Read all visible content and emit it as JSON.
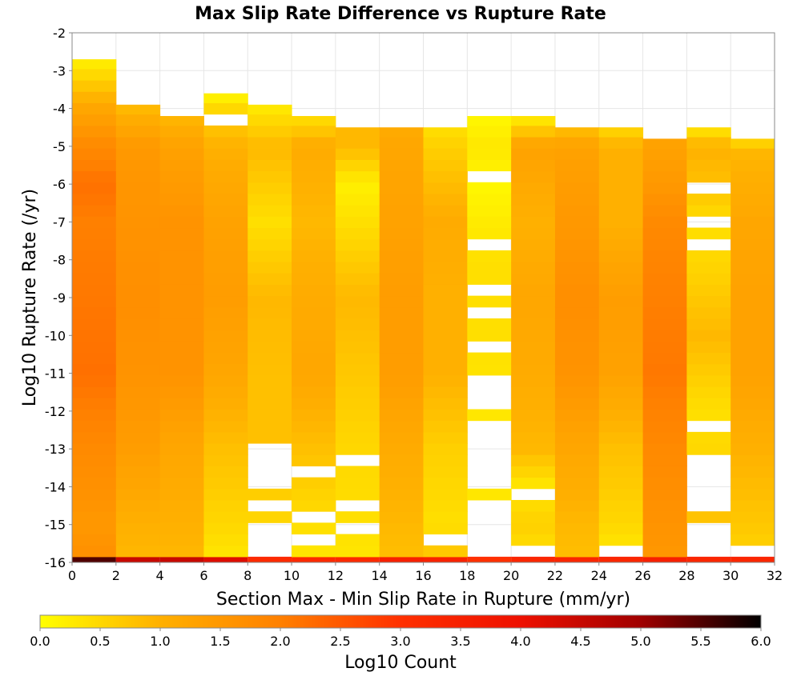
{
  "chart_data": {
    "type": "heatmap",
    "title": "Max Slip Rate Difference vs Rupture Rate",
    "xlabel": "Section Max - Min Slip Rate in Rupture (mm/yr)",
    "ylabel": "Log10 Rupture Rate (/yr)",
    "xlim": [
      0,
      32
    ],
    "ylim": [
      -16,
      -2
    ],
    "xticks": [
      "0",
      "2",
      "4",
      "6",
      "8",
      "10",
      "12",
      "14",
      "16",
      "18",
      "20",
      "22",
      "24",
      "26",
      "28",
      "30",
      "32"
    ],
    "yticks": [
      "-2",
      "-3",
      "-4",
      "-5",
      "-6",
      "-7",
      "-8",
      "-9",
      "-10",
      "-11",
      "-12",
      "-13",
      "-14",
      "-15",
      "-16"
    ],
    "x_bin_width": 2,
    "y_bin_height": 0.3,
    "colorbar": {
      "label": "Log10 Count",
      "range": [
        0,
        6
      ],
      "ticks": [
        "0.0",
        "0.5",
        "1.0",
        "1.5",
        "2.0",
        "2.5",
        "3.0",
        "3.5",
        "4.0",
        "4.5",
        "5.0",
        "5.5",
        "6.0"
      ],
      "colors": [
        "#ffff00",
        "#ffb000",
        "#ff8000",
        "#ff3000",
        "#ee1000",
        "#a00000",
        "#000000"
      ]
    },
    "columns": [
      {
        "x": 0,
        "y_bottom": -16.0,
        "y_top": -2.7,
        "profile": [
          [
            -16,
            1.7
          ],
          [
            -15,
            1.5
          ],
          [
            -13,
            1.8
          ],
          [
            -11,
            2.2
          ],
          [
            -9,
            2.1
          ],
          [
            -7,
            2.0
          ],
          [
            -6,
            2.2
          ],
          [
            -5,
            1.8
          ],
          [
            -4,
            1.2
          ],
          [
            -3,
            0.4
          ],
          [
            -2.7,
            0.2
          ]
        ],
        "bottom_value": 5.5,
        "gaps": []
      },
      {
        "x": 2,
        "y_bottom": -16.0,
        "y_top": -3.9,
        "profile": [
          [
            -16,
            0.9
          ],
          [
            -15,
            1.0
          ],
          [
            -13,
            1.4
          ],
          [
            -11,
            1.6
          ],
          [
            -9,
            1.7
          ],
          [
            -7,
            1.6
          ],
          [
            -5,
            1.5
          ],
          [
            -4,
            0.9
          ]
        ],
        "bottom_value": 4.5,
        "gaps": []
      },
      {
        "x": 4,
        "y_bottom": -16.0,
        "y_top": -4.2,
        "profile": [
          [
            -16,
            0.9
          ],
          [
            -15,
            1.0
          ],
          [
            -13,
            1.2
          ],
          [
            -11,
            1.6
          ],
          [
            -9,
            1.6
          ],
          [
            -7,
            1.6
          ],
          [
            -5,
            1.3
          ],
          [
            -4.2,
            0.9
          ]
        ],
        "bottom_value": 4.5,
        "gaps": []
      },
      {
        "x": 6,
        "y_bottom": -16.0,
        "y_top": -3.6,
        "profile": [
          [
            -16,
            0.3
          ],
          [
            -15,
            0.5
          ],
          [
            -13,
            0.8
          ],
          [
            -11,
            1.2
          ],
          [
            -9,
            1.4
          ],
          [
            -7,
            1.3
          ],
          [
            -5,
            1.0
          ],
          [
            -4,
            0.5
          ],
          [
            -3.6,
            0.1
          ]
        ],
        "bottom_value": 4.2,
        "gaps": [
          [
            -4.5,
            -4.2
          ]
        ]
      },
      {
        "x": 8,
        "y_bottom": -16.0,
        "y_top": -3.9,
        "profile": [
          [
            -15,
            0.5
          ],
          [
            -13,
            0.8
          ],
          [
            -11,
            0.8
          ],
          [
            -9,
            0.9
          ],
          [
            -7,
            0.4
          ],
          [
            -5,
            0.9
          ],
          [
            -4,
            0.3
          ]
        ],
        "bottom_value": 3.2,
        "gaps": [
          [
            -16,
            -14.9
          ],
          [
            -14.6,
            -14.3
          ],
          [
            -14.0,
            -12.8
          ]
        ]
      },
      {
        "x": 10,
        "y_bottom": -16.0,
        "y_top": -4.2,
        "profile": [
          [
            -16,
            0.3
          ],
          [
            -15,
            0.4
          ],
          [
            -13,
            0.8
          ],
          [
            -11,
            1.2
          ],
          [
            -9,
            1.1
          ],
          [
            -7,
            0.9
          ],
          [
            -5,
            1.1
          ],
          [
            -4.2,
            0.4
          ]
        ],
        "bottom_value": 3.2,
        "gaps": [
          [
            -15.5,
            -15.2
          ],
          [
            -14.9,
            -14.6
          ],
          [
            -13.7,
            -13.4
          ]
        ]
      },
      {
        "x": 12,
        "y_bottom": -16.0,
        "y_top": -4.5,
        "profile": [
          [
            -16,
            0.3
          ],
          [
            -15,
            0.4
          ],
          [
            -13,
            0.5
          ],
          [
            -11,
            0.7
          ],
          [
            -9,
            0.9
          ],
          [
            -7,
            0.4
          ],
          [
            -6,
            0.2
          ],
          [
            -5,
            0.9
          ]
        ],
        "bottom_value": 3.2,
        "gaps": [
          [
            -15.2,
            -14.9
          ],
          [
            -14.6,
            -14.3
          ],
          [
            -13.4,
            -13.1
          ]
        ]
      },
      {
        "x": 14,
        "y_bottom": -16.0,
        "y_top": -4.5,
        "profile": [
          [
            -16,
            0.8
          ],
          [
            -15,
            0.9
          ],
          [
            -13,
            1.1
          ],
          [
            -11,
            1.4
          ],
          [
            -9,
            1.4
          ],
          [
            -7,
            1.3
          ],
          [
            -5,
            1.2
          ],
          [
            -4.5,
            1.1
          ]
        ],
        "bottom_value": 3.5,
        "gaps": []
      },
      {
        "x": 16,
        "y_bottom": -16.0,
        "y_top": -4.5,
        "profile": [
          [
            -16,
            0.8
          ],
          [
            -15,
            0.4
          ],
          [
            -13,
            0.6
          ],
          [
            -11,
            1.0
          ],
          [
            -9,
            1.0
          ],
          [
            -7,
            1.1
          ],
          [
            -5,
            0.6
          ],
          [
            -4.5,
            0.4
          ]
        ],
        "bottom_value": 3.4,
        "gaps": [
          [
            -15.5,
            -15.2
          ]
        ]
      },
      {
        "x": 18,
        "y_bottom": -16.0,
        "y_top": -4.2,
        "profile": [
          [
            -16,
            0.4
          ],
          [
            -14,
            0.3
          ],
          [
            -12,
            0.3
          ],
          [
            -10,
            0.4
          ],
          [
            -8,
            0.4
          ],
          [
            -6,
            0.1
          ],
          [
            -5,
            0.3
          ],
          [
            -4.2,
            0.1
          ]
        ],
        "bottom_value": 3.0,
        "gaps": [
          [
            -15.8,
            -14.4
          ],
          [
            -13.9,
            -12.2
          ],
          [
            -11.8,
            -11.0
          ],
          [
            -10.4,
            -10.1
          ],
          [
            -9.5,
            -9.2
          ],
          [
            -8.9,
            -8.6
          ],
          [
            -7.6,
            -7.3
          ],
          [
            -6.0,
            -5.7
          ]
        ]
      },
      {
        "x": 20,
        "y_bottom": -16.0,
        "y_top": -4.2,
        "profile": [
          [
            -16,
            0.3
          ],
          [
            -15,
            0.6
          ],
          [
            -14,
            0.3
          ],
          [
            -13,
            0.9
          ],
          [
            -11,
            1.1
          ],
          [
            -9,
            1.2
          ],
          [
            -7,
            1.0
          ],
          [
            -5,
            1.3
          ],
          [
            -4.2,
            0.2
          ]
        ],
        "bottom_value": 3.3,
        "gaps": [
          [
            -15.8,
            -15.5
          ],
          [
            -14.3,
            -14.0
          ]
        ]
      },
      {
        "x": 22,
        "y_bottom": -16.0,
        "y_top": -4.5,
        "profile": [
          [
            -16,
            0.8
          ],
          [
            -15,
            0.9
          ],
          [
            -13,
            1.2
          ],
          [
            -11,
            1.6
          ],
          [
            -9,
            1.7
          ],
          [
            -7,
            1.5
          ],
          [
            -5,
            1.3
          ],
          [
            -4.5,
            0.8
          ]
        ],
        "bottom_value": 3.3,
        "gaps": []
      },
      {
        "x": 24,
        "y_bottom": -16.0,
        "y_top": -4.5,
        "profile": [
          [
            -16,
            0.2
          ],
          [
            -15,
            0.5
          ],
          [
            -13,
            0.8
          ],
          [
            -11,
            1.3
          ],
          [
            -9,
            1.4
          ],
          [
            -7,
            1.0
          ],
          [
            -5,
            1.0
          ],
          [
            -4.5,
            0.5
          ]
        ],
        "bottom_value": 3.3,
        "gaps": [
          [
            -15.8,
            -15.5
          ]
        ]
      },
      {
        "x": 26,
        "y_bottom": -16.0,
        "y_top": -4.8,
        "profile": [
          [
            -16,
            1.5
          ],
          [
            -15,
            1.6
          ],
          [
            -13,
            1.8
          ],
          [
            -11,
            2.1
          ],
          [
            -9,
            2.0
          ],
          [
            -7,
            1.8
          ],
          [
            -6,
            1.5
          ],
          [
            -5,
            1.3
          ]
        ],
        "bottom_value": 3.5,
        "gaps": []
      },
      {
        "x": 28,
        "y_bottom": -16.0,
        "y_top": -4.5,
        "profile": [
          [
            -15,
            0.8
          ],
          [
            -14,
            0.6
          ],
          [
            -12,
            0.4
          ],
          [
            -10,
            0.9
          ],
          [
            -8,
            0.5
          ],
          [
            -7,
            0.4
          ],
          [
            -6,
            0.8
          ],
          [
            -5,
            1.0
          ],
          [
            -4.5,
            0.3
          ]
        ],
        "bottom_value": 3.3,
        "gaps": [
          [
            -15.8,
            -14.9
          ],
          [
            -14.6,
            -13.1
          ],
          [
            -12.5,
            -12.2
          ],
          [
            -7.6,
            -7.3
          ],
          [
            -7.0,
            -6.7
          ],
          [
            -6.3,
            -6.0
          ]
        ]
      },
      {
        "x": 30,
        "y_bottom": -16.0,
        "y_top": -4.8,
        "profile": [
          [
            -16,
            0.5
          ],
          [
            -15,
            0.7
          ],
          [
            -13,
            1.0
          ],
          [
            -11,
            1.3
          ],
          [
            -9,
            1.3
          ],
          [
            -7,
            1.2
          ],
          [
            -5,
            0.9
          ],
          [
            -4.8,
            0.3
          ]
        ],
        "bottom_value": 3.3,
        "gaps": [
          [
            -15.8,
            -15.5
          ]
        ]
      }
    ]
  }
}
